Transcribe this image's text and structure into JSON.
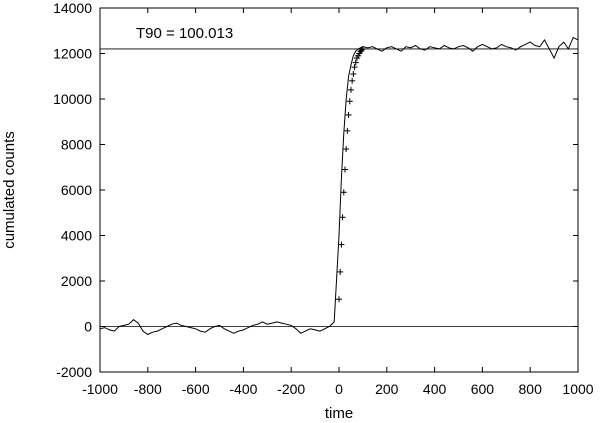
{
  "chart_data": {
    "type": "line",
    "title": "",
    "xlabel": "time",
    "ylabel": "cumulated counts",
    "xlim": [
      -1000,
      1000
    ],
    "ylim": [
      -2000,
      14000
    ],
    "xticks": [
      -1000,
      -800,
      -600,
      -400,
      -200,
      0,
      200,
      400,
      600,
      800,
      1000
    ],
    "yticks": [
      -2000,
      0,
      2000,
      4000,
      6000,
      8000,
      10000,
      12000,
      14000
    ],
    "grid": false,
    "legend": "none",
    "annotation": "T90 = 100.013",
    "reference_lines": [
      {
        "value": 12200
      },
      {
        "value": 0
      }
    ],
    "series": [
      {
        "style": "line",
        "x": [
          -1000,
          -980,
          -960,
          -940,
          -920,
          -900,
          -880,
          -860,
          -840,
          -820,
          -800,
          -780,
          -760,
          -740,
          -720,
          -700,
          -680,
          -660,
          -640,
          -620,
          -600,
          -580,
          -560,
          -540,
          -520,
          -500,
          -480,
          -460,
          -440,
          -420,
          -400,
          -380,
          -360,
          -340,
          -320,
          -300,
          -280,
          -260,
          -240,
          -220,
          -200,
          -180,
          -160,
          -140,
          -120,
          -100,
          -80,
          -60,
          -40,
          -20,
          0,
          10,
          20,
          30,
          40,
          50,
          60,
          70,
          80,
          90,
          100,
          120,
          140,
          160,
          180,
          200,
          220,
          240,
          260,
          280,
          300,
          320,
          340,
          360,
          380,
          400,
          420,
          440,
          460,
          480,
          500,
          520,
          540,
          560,
          580,
          600,
          620,
          640,
          660,
          680,
          700,
          720,
          740,
          760,
          780,
          800,
          820,
          840,
          860,
          880,
          900,
          920,
          940,
          960,
          980,
          1000
        ],
        "y": [
          -100,
          -50,
          -150,
          -200,
          0,
          50,
          100,
          300,
          150,
          -200,
          -350,
          -250,
          -200,
          -100,
          0,
          100,
          150,
          50,
          0,
          -50,
          -100,
          -200,
          -250,
          -100,
          0,
          50,
          -100,
          -200,
          -300,
          -200,
          -150,
          -50,
          50,
          100,
          200,
          100,
          150,
          200,
          150,
          100,
          50,
          -100,
          -300,
          -200,
          -100,
          -150,
          -200,
          -100,
          0,
          200,
          4000,
          6500,
          8500,
          10000,
          11000,
          11500,
          11900,
          12100,
          12200,
          12250,
          12300,
          12250,
          12300,
          12200,
          12100,
          12250,
          12300,
          12200,
          12100,
          12300,
          12250,
          12350,
          12200,
          12150,
          12300,
          12250,
          12200,
          12350,
          12250,
          12200,
          12300,
          12350,
          12250,
          12100,
          12300,
          12400,
          12300,
          12200,
          12250,
          12400,
          12300,
          12250,
          12150,
          12300,
          12400,
          12500,
          12350,
          12300,
          12600,
          12200,
          11800,
          12300,
          12500,
          12200,
          12700,
          12600
        ]
      },
      {
        "style": "markers",
        "marker": "+",
        "x": [
          0,
          5,
          10,
          15,
          20,
          25,
          30,
          35,
          40,
          45,
          50,
          55,
          60,
          65,
          70,
          75,
          80,
          85,
          90,
          95,
          100
        ],
        "y": [
          1200,
          2400,
          3600,
          4800,
          5900,
          6900,
          7800,
          8600,
          9300,
          9900,
          10400,
          10800,
          11100,
          11400,
          11600,
          11800,
          11900,
          12000,
          12100,
          12150,
          12200
        ]
      }
    ]
  }
}
